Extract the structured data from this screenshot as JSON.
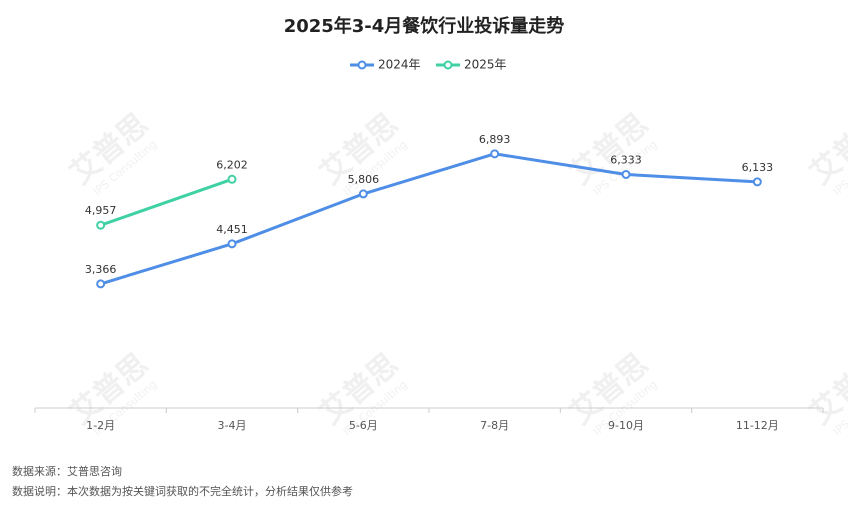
{
  "chart_data": {
    "type": "line",
    "title": "2025年3-4月餐饮行业投诉量走势",
    "categories": [
      "1-2月",
      "3-4月",
      "5-6月",
      "7-8月",
      "9-10月",
      "11-12月"
    ],
    "series": [
      {
        "name": "2024年",
        "color": "#4e8ee6",
        "values": [
          3366,
          4451,
          5806,
          6893,
          6333,
          6133
        ],
        "value_labels": [
          "3,366",
          "4,451",
          "5,806",
          "6,893",
          "6,333",
          "6,133"
        ]
      },
      {
        "name": "2025年",
        "color": "#3fd1a4",
        "values": [
          4957,
          6202,
          null,
          null,
          null,
          null
        ],
        "value_labels": [
          "4,957",
          "6,202",
          null,
          null,
          null,
          null
        ]
      }
    ],
    "ylim": [
      0,
      8000
    ],
    "legend": "top",
    "watermark": [
      "艾普思",
      "IPS Consulting"
    ],
    "notes": [
      "数据来源：艾普思咨询",
      "数据说明：本次数据为按关键词获取的不完全统计，分析结果仅供参考"
    ]
  }
}
